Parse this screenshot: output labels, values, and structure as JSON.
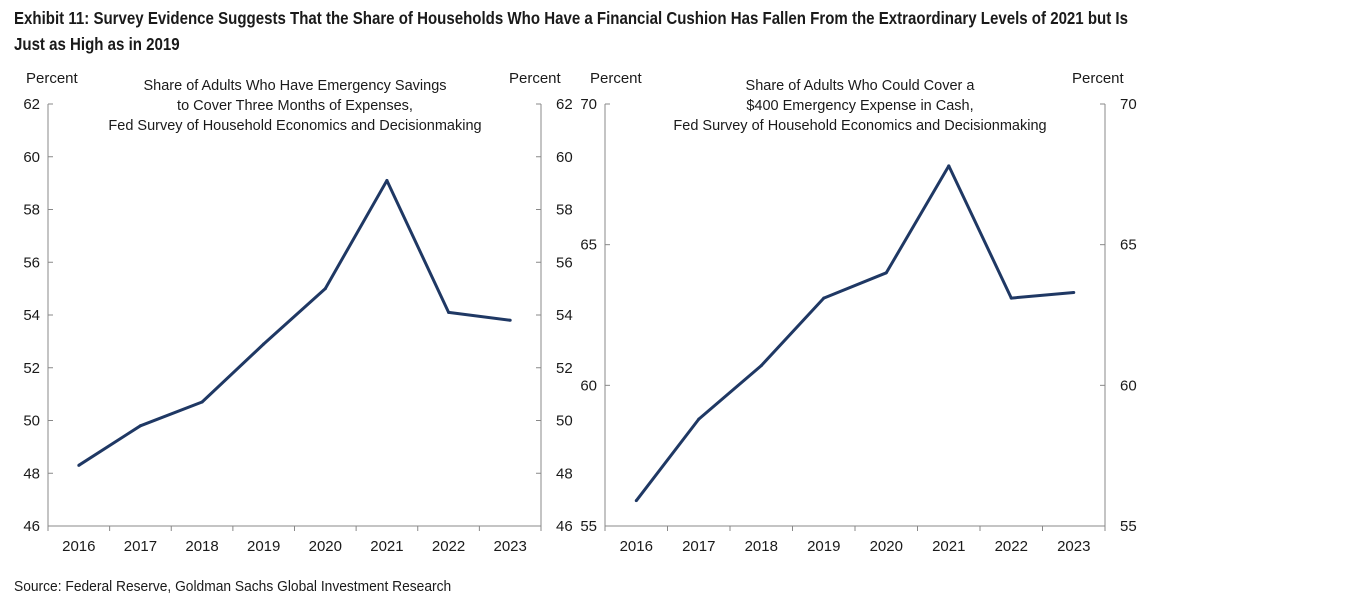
{
  "exhibit": {
    "title": "Exhibit 11: Survey Evidence Suggests That the Share of Households Who Have a Financial Cushion Has Fallen From the Extraordinary Levels of 2021 but Is Just as High as in 2019",
    "source": "Source: Federal Reserve, Goldman Sachs Global Investment Research"
  },
  "colors": {
    "line": "#1f3864",
    "axis": "#888888",
    "text": "#1a1a1a"
  },
  "chart_data": [
    {
      "type": "line",
      "title_lines": [
        "Share of Adults Who Have Emergency Savings",
        "to Cover Three Months of Expenses,",
        "Fed Survey of Household Economics and Decisionmaking"
      ],
      "ylabel_left": "Percent",
      "ylabel_right": "Percent",
      "ylim": [
        46,
        62
      ],
      "yticks_left": [
        "62",
        "60",
        "58",
        "56",
        "54",
        "52",
        "50",
        "48",
        "46"
      ],
      "yticks_right": [
        "62",
        "60",
        "58",
        "56",
        "54",
        "52",
        "50",
        "48",
        "46"
      ],
      "categories": [
        "2016",
        "2017",
        "2018",
        "2019",
        "2020",
        "2021",
        "2022",
        "2023"
      ],
      "series": [
        {
          "values": [
            48.3,
            49.8,
            50.7,
            52.9,
            55.0,
            59.1,
            54.1,
            53.8
          ]
        }
      ]
    },
    {
      "type": "line",
      "title_lines": [
        "Share of Adults Who Could Cover a",
        "$400 Emergency Expense in Cash,",
        "Fed Survey of Household Economics and Decisionmaking"
      ],
      "ylabel_left": "Percent",
      "ylabel_right": "Percent",
      "ylim": [
        55,
        70
      ],
      "yticks_left": [
        "70",
        "65",
        "60",
        "55"
      ],
      "yticks_right": [
        "70",
        "65",
        "60",
        "55"
      ],
      "categories": [
        "2016",
        "2017",
        "2018",
        "2019",
        "2020",
        "2021",
        "2022",
        "2023"
      ],
      "series": [
        {
          "values": [
            55.9,
            58.8,
            60.7,
            63.1,
            64.0,
            67.8,
            63.1,
            63.3
          ]
        }
      ]
    }
  ]
}
